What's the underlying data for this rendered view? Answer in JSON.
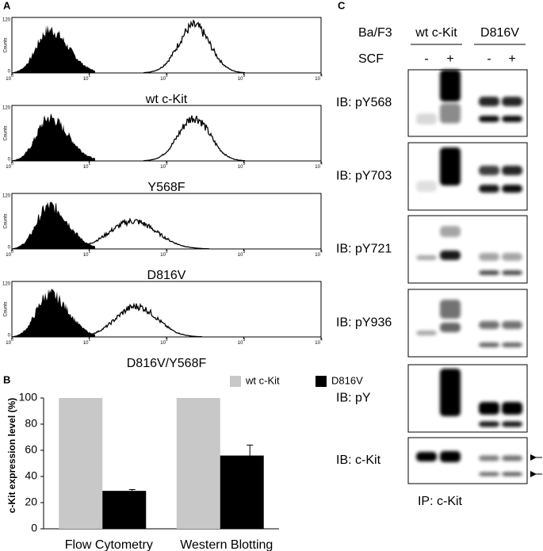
{
  "panel_a": {
    "label": "A",
    "y_axis_label": "Counts",
    "y_tick_labels": [
      "0",
      "120"
    ],
    "x_tick_labels": [
      {
        "base": "10",
        "exp": "0"
      },
      {
        "base": "10",
        "exp": "1"
      },
      {
        "base": "10",
        "exp": "2"
      },
      {
        "base": "10",
        "exp": "3"
      },
      {
        "base": "10",
        "exp": "4"
      }
    ],
    "histograms": [
      {
        "label": "wt c-Kit"
      },
      {
        "label": "Y568F"
      },
      {
        "label": "D816V"
      },
      {
        "label": "D816V/Y568F"
      }
    ]
  },
  "chart_data": {
    "type": "bar",
    "panel_label": "B",
    "ylabel": "c-Kit expression level (%)",
    "categories": [
      "Flow Cytometry",
      "Western Blotting"
    ],
    "series": [
      {
        "name": "wt c-Kit",
        "color": "#c8c8c8",
        "values": [
          100,
          100
        ]
      },
      {
        "name": "D816V",
        "color": "#000000",
        "values": [
          29,
          56
        ],
        "errors": [
          1,
          8
        ]
      }
    ],
    "ylim": [
      0,
      100
    ],
    "yticks": [
      0,
      20,
      40,
      60,
      80,
      100
    ]
  },
  "panel_c": {
    "label": "C",
    "cell_line": "Ba/F3",
    "groups": [
      "wt c-Kit",
      "D816V"
    ],
    "treatment": "SCF",
    "treatment_signs": [
      "-",
      "+",
      "-",
      "+"
    ],
    "blots": [
      {
        "label": "IB: pY568"
      },
      {
        "label": "IB: pY703"
      },
      {
        "label": "IB: pY721"
      },
      {
        "label": "IB: pY936"
      },
      {
        "label": "IB: pY"
      },
      {
        "label": "IB: c-Kit"
      }
    ],
    "ip_label": "IP: c-Kit"
  }
}
